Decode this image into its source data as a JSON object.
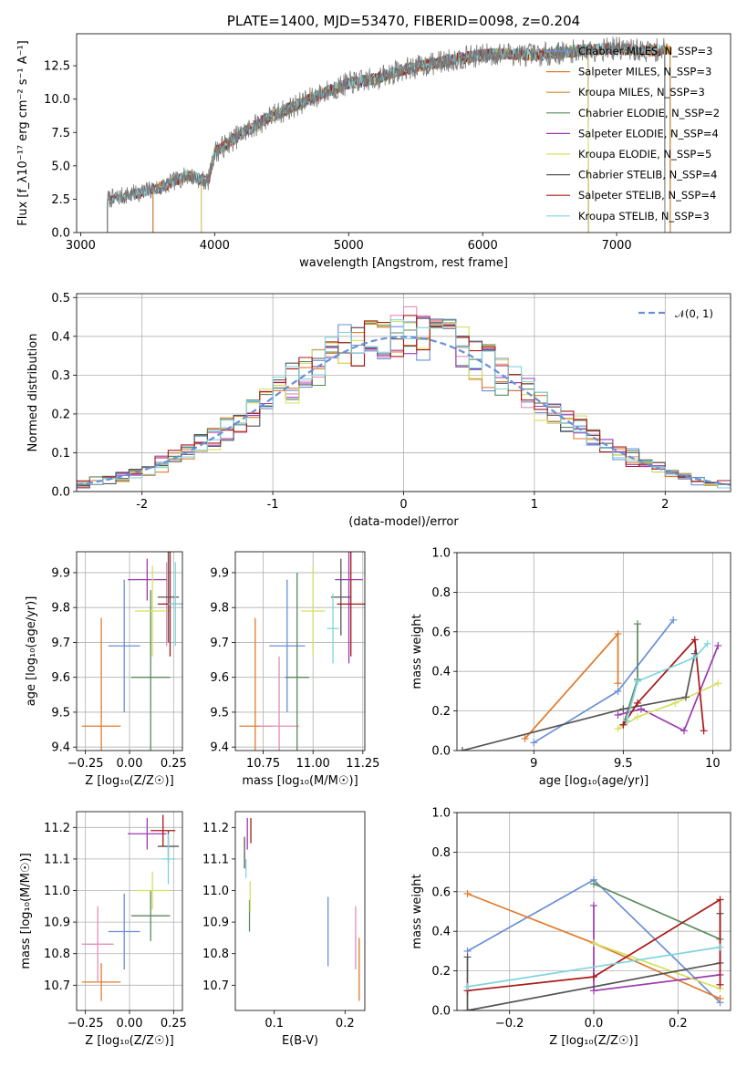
{
  "colors": [
    "#6a8fd8",
    "#e07b2c",
    "#e38fb7",
    "#c7913a",
    "#5b8a5e",
    "#9b3bb0",
    "#d6e060",
    "#555555",
    "#a81818",
    "#7fd4dd"
  ],
  "chart_data": [
    {
      "id": "spectrum",
      "type": "line",
      "title": "PLATE=1400, MJD=53470, FIBERID=0098, z=0.204",
      "xlabel": "wavelength [Angstrom, rest frame]",
      "ylabel": "Flux [f_λ10⁻¹⁷ erg cm⁻² s⁻¹ A⁻¹]",
      "xlim": [
        2970,
        7850
      ],
      "ylim": [
        0,
        14.9
      ],
      "xticks": [
        3000,
        4000,
        5000,
        6000,
        7000
      ],
      "yticks": [
        0.0,
        2.5,
        5.0,
        7.5,
        10.0,
        12.5
      ],
      "grid": false,
      "legend_position": "right",
      "series": [
        {
          "name": "Chabrier MILES, N_SSP=3",
          "color": "#6a8fd8",
          "xrange": [
            3540,
            7400
          ]
        },
        {
          "name": "Salpeter MILES, N_SSP=3",
          "color": "#e07b2c",
          "xrange": [
            3540,
            7400
          ]
        },
        {
          "name": "Kroupa MILES, N_SSP=3",
          "color": "#c7913a",
          "xrange": [
            3540,
            7400
          ]
        },
        {
          "name": "Chabrier ELODIE, N_SSP=2",
          "color": "#5b8a5e",
          "xrange": [
            3900,
            6790
          ]
        },
        {
          "name": "Salpeter ELODIE, N_SSP=4",
          "color": "#9b3bb0",
          "xrange": [
            3900,
            6790
          ]
        },
        {
          "name": "Kroupa ELODIE, N_SSP=5",
          "color": "#d6e060",
          "xrange": [
            3900,
            6790
          ]
        },
        {
          "name": "Chabrier STELIB, N_SSP=4",
          "color": "#555555",
          "xrange": [
            3200,
            7360
          ]
        },
        {
          "name": "Salpeter STELIB, N_SSP=4",
          "color": "#a81818",
          "xrange": [
            3200,
            7360
          ]
        },
        {
          "name": "Kroupa STELIB, N_SSP=3",
          "color": "#7fd4dd",
          "xrange": [
            3200,
            7360
          ]
        }
      ],
      "continuum": [
        [
          3200,
          2.5
        ],
        [
          3400,
          2.9
        ],
        [
          3600,
          3.4
        ],
        [
          3800,
          4.3
        ],
        [
          3950,
          3.8
        ],
        [
          4000,
          6.0
        ],
        [
          4200,
          7.4
        ],
        [
          4400,
          8.6
        ],
        [
          4600,
          9.5
        ],
        [
          4800,
          10.4
        ],
        [
          5000,
          11.2
        ],
        [
          5200,
          11.5
        ],
        [
          5400,
          12.2
        ],
        [
          5600,
          12.6
        ],
        [
          5800,
          13.0
        ],
        [
          6000,
          13.3
        ],
        [
          6200,
          13.4
        ],
        [
          6400,
          13.3
        ],
        [
          6600,
          13.5
        ],
        [
          6800,
          13.7
        ],
        [
          7000,
          13.8
        ],
        [
          7200,
          13.6
        ],
        [
          7360,
          13.7
        ],
        [
          7500,
          13.8
        ]
      ],
      "observed_noise": 0.9
    },
    {
      "id": "residuals",
      "type": "histogram",
      "xlabel": "(data-model)/error",
      "ylabel": "Normed distribution",
      "xlim": [
        -2.5,
        2.5
      ],
      "ylim": [
        0,
        0.51
      ],
      "xticks": [
        -2,
        -1,
        0,
        1,
        2
      ],
      "yticks": [
        0.0,
        0.1,
        0.2,
        0.3,
        0.4,
        0.5
      ],
      "grid": true,
      "legend_position": "top-right",
      "reference": {
        "name": "𝒩(0, 1)",
        "mean": 0,
        "std": 1,
        "color": "#6a8fd8"
      },
      "bins": {
        "start": -2.5,
        "width": 0.1,
        "count": 50
      }
    },
    {
      "id": "age-vs-Z",
      "type": "errorbar",
      "xlabel": "Z [log₁₀(Z/Z☉)]",
      "ylabel": "age [log₁₀(age/yr)]",
      "xlim": [
        -0.3,
        0.3
      ],
      "ylim": [
        9.39,
        9.96
      ],
      "xticks": [
        -0.25,
        0.0,
        0.25
      ],
      "xtick_labels": [
        "−0.25",
        "0.00",
        "0.25"
      ],
      "yticks": [
        9.4,
        9.5,
        9.6,
        9.7,
        9.8,
        9.9
      ],
      "grid": true,
      "points": [
        {
          "color": "#6a8fd8",
          "x": -0.03,
          "xerr": 0.09,
          "y": 9.69,
          "yerr": 0.19
        },
        {
          "color": "#e07b2c",
          "x": -0.16,
          "xerr": 0.11,
          "y": 9.46,
          "yerr": 0.31
        },
        {
          "color": "#e38fb7",
          "x": 0.21,
          "xerr": 0.03,
          "y": 9.81,
          "yerr": 0.12
        },
        {
          "color": "#5b8a5e",
          "x": 0.12,
          "xerr": 0.11,
          "y": 9.6,
          "yerr": 0.25
        },
        {
          "color": "#9b3bb0",
          "x": 0.1,
          "xerr": 0.11,
          "y": 9.88,
          "yerr": 0.06
        },
        {
          "color": "#d6e060",
          "x": 0.13,
          "xerr": 0.1,
          "y": 9.79,
          "yerr": 0.13
        },
        {
          "color": "#555555",
          "x": 0.22,
          "xerr": 0.06,
          "y": 9.83,
          "yerr": 0.13
        },
        {
          "color": "#a81818",
          "x": 0.23,
          "xerr": 0.07,
          "y": 9.81,
          "yerr": 0.15
        },
        {
          "color": "#7fd4dd",
          "x": 0.26,
          "xerr": 0.04,
          "y": 9.81,
          "yerr": 0.12
        }
      ]
    },
    {
      "id": "age-vs-mass",
      "type": "errorbar",
      "xlabel": "mass [log₁₀(M/M☉)]",
      "ylabel": "",
      "xlim": [
        10.61,
        11.26
      ],
      "ylim": [
        9.39,
        9.96
      ],
      "xticks": [
        10.75,
        11.0,
        11.25
      ],
      "xtick_labels": [
        "10.75",
        "11.00",
        "11.25"
      ],
      "yticks": [
        9.4,
        9.5,
        9.6,
        9.7,
        9.8,
        9.9
      ],
      "grid": true,
      "points": [
        {
          "color": "#6a8fd8",
          "x": 10.87,
          "xerr": 0.09,
          "y": 9.69,
          "yerr": 0.19
        },
        {
          "color": "#e07b2c",
          "x": 10.71,
          "xerr": 0.08,
          "y": 9.46,
          "yerr": 0.31
        },
        {
          "color": "#e38fb7",
          "x": 10.83,
          "xerr": 0.1,
          "y": 9.46,
          "yerr": 0.2
        },
        {
          "color": "#5b8a5e",
          "x": 10.92,
          "xerr": 0.06,
          "y": 9.6,
          "yerr": 0.3
        },
        {
          "color": "#9b3bb0",
          "x": 11.18,
          "xerr": 0.07,
          "y": 9.88,
          "yerr": 0.24
        },
        {
          "color": "#d6e060",
          "x": 11.0,
          "xerr": 0.06,
          "y": 9.79,
          "yerr": 0.13
        },
        {
          "color": "#555555",
          "x": 11.14,
          "xerr": 0.05,
          "y": 9.83,
          "yerr": 0.11
        },
        {
          "color": "#a81818",
          "x": 11.19,
          "xerr": 0.07,
          "y": 9.81,
          "yerr": 0.15
        },
        {
          "color": "#7fd4dd",
          "x": 11.1,
          "xerr": 0.03,
          "y": 9.74,
          "yerr": 0.1
        }
      ]
    },
    {
      "id": "mass-weight-vs-age",
      "type": "line",
      "xlabel": "age [log₁₀(age/yr)]",
      "ylabel": "mass weight",
      "xlim": [
        8.57,
        10.1
      ],
      "ylim": [
        0,
        1.0
      ],
      "xticks": [
        9.0,
        9.5,
        10.0
      ],
      "yticks": [
        0.0,
        0.2,
        0.4,
        0.6,
        0.8,
        1.0
      ],
      "grid": true,
      "series": [
        {
          "color": "#6a8fd8",
          "points": [
            [
              9.0,
              0.04
            ],
            [
              9.47,
              0.3
            ],
            [
              9.78,
              0.66
            ]
          ]
        },
        {
          "color": "#e07b2c",
          "points": [
            [
              8.95,
              0.06
            ],
            [
              9.47,
              0.59
            ],
            [
              9.47,
              0.34
            ]
          ]
        },
        {
          "color": "#5b8a5e",
          "points": [
            [
              9.5,
              0.13
            ],
            [
              9.58,
              0.36
            ],
            [
              9.58,
              0.64
            ]
          ]
        },
        {
          "color": "#9b3bb0",
          "points": [
            [
              9.47,
              0.18
            ],
            [
              9.6,
              0.21
            ],
            [
              9.84,
              0.1
            ],
            [
              10.03,
              0.53
            ]
          ]
        },
        {
          "color": "#d6e060",
          "points": [
            [
              9.47,
              0.11
            ],
            [
              9.58,
              0.17
            ],
            [
              9.79,
              0.24
            ],
            [
              10.03,
              0.34
            ]
          ]
        },
        {
          "color": "#555555",
          "points": [
            [
              8.6,
              0.0
            ],
            [
              9.5,
              0.21
            ],
            [
              9.85,
              0.27
            ],
            [
              9.9,
              0.49
            ]
          ]
        },
        {
          "color": "#a81818",
          "points": [
            [
              9.5,
              0.13
            ],
            [
              9.58,
              0.24
            ],
            [
              9.9,
              0.56
            ],
            [
              9.95,
              0.1
            ]
          ]
        },
        {
          "color": "#7fd4dd",
          "points": [
            [
              9.52,
              0.15
            ],
            [
              9.58,
              0.35
            ],
            [
              9.9,
              0.47
            ],
            [
              9.97,
              0.54
            ]
          ]
        }
      ]
    },
    {
      "id": "mass-vs-Z",
      "type": "errorbar",
      "xlabel": "Z [log₁₀(Z/Z☉)]",
      "ylabel": "mass [log₁₀(M/M☉)]",
      "xlim": [
        -0.3,
        0.3
      ],
      "ylim": [
        10.62,
        11.25
      ],
      "xticks": [
        -0.25,
        0.0,
        0.25
      ],
      "xtick_labels": [
        "−0.25",
        "0.00",
        "0.25"
      ],
      "yticks": [
        10.7,
        10.8,
        10.9,
        11.0,
        11.1,
        11.2
      ],
      "grid": true,
      "points": [
        {
          "color": "#6a8fd8",
          "x": -0.03,
          "xerr": 0.09,
          "y": 10.87,
          "yerr": 0.12
        },
        {
          "color": "#e07b2c",
          "x": -0.16,
          "xerr": 0.11,
          "y": 10.71,
          "yerr": 0.06
        },
        {
          "color": "#e38fb7",
          "x": -0.18,
          "xerr": 0.09,
          "y": 10.83,
          "yerr": 0.12
        },
        {
          "color": "#5b8a5e",
          "x": 0.12,
          "xerr": 0.11,
          "y": 10.92,
          "yerr": 0.08
        },
        {
          "color": "#9b3bb0",
          "x": 0.1,
          "xerr": 0.11,
          "y": 11.18,
          "yerr": 0.05
        },
        {
          "color": "#d6e060",
          "x": 0.13,
          "xerr": 0.1,
          "y": 11.0,
          "yerr": 0.06
        },
        {
          "color": "#555555",
          "x": 0.22,
          "xerr": 0.06,
          "y": 11.14,
          "yerr": 0.05
        },
        {
          "color": "#a81818",
          "x": 0.19,
          "xerr": 0.07,
          "y": 11.19,
          "yerr": 0.05
        },
        {
          "color": "#7fd4dd",
          "x": 0.22,
          "xerr": 0.04,
          "y": 11.1,
          "yerr": 0.08
        }
      ]
    },
    {
      "id": "mass-vs-EBV",
      "type": "errorbar",
      "xlabel": "E(B-V)",
      "ylabel": "",
      "xlim": [
        0.045,
        0.228
      ],
      "ylim": [
        10.62,
        11.25
      ],
      "xticks": [
        0.1,
        0.2
      ],
      "xtick_labels": [
        "0.1",
        "0.2"
      ],
      "yticks": [
        10.7,
        10.8,
        10.9,
        11.0,
        11.1,
        11.2
      ],
      "grid": false,
      "points": [
        {
          "color": "#6a8fd8",
          "x": 0.176,
          "xerr": 0,
          "y": 10.87,
          "yerr": 0.11
        },
        {
          "color": "#e07b2c",
          "x": 0.22,
          "xerr": 0,
          "y": 10.75,
          "yerr": 0.1
        },
        {
          "color": "#e38fb7",
          "x": 0.215,
          "xerr": 0,
          "y": 10.85,
          "yerr": 0.1
        },
        {
          "color": "#5b8a5e",
          "x": 0.065,
          "xerr": 0,
          "y": 10.92,
          "yerr": 0.05
        },
        {
          "color": "#9b3bb0",
          "x": 0.062,
          "xerr": 0,
          "y": 11.18,
          "yerr": 0.05
        },
        {
          "color": "#d6e060",
          "x": 0.066,
          "xerr": 0,
          "y": 10.98,
          "yerr": 0.05
        },
        {
          "color": "#555555",
          "x": 0.058,
          "xerr": 0,
          "y": 11.12,
          "yerr": 0.05
        },
        {
          "color": "#a81818",
          "x": 0.067,
          "xerr": 0,
          "y": 11.19,
          "yerr": 0.04
        },
        {
          "color": "#7fd4dd",
          "x": 0.06,
          "xerr": 0,
          "y": 11.07,
          "yerr": 0.03
        }
      ]
    },
    {
      "id": "mass-weight-vs-Z",
      "type": "line",
      "xlabel": "Z [log₁₀(Z/Z☉)]",
      "ylabel": "mass weight",
      "xlim": [
        -0.325,
        0.325
      ],
      "ylim": [
        0,
        1.0
      ],
      "xticks": [
        -0.2,
        0.0,
        0.2
      ],
      "xtick_labels": [
        "−0.2",
        "0.0",
        "0.2"
      ],
      "yticks": [
        0.0,
        0.2,
        0.4,
        0.6,
        0.8,
        1.0
      ],
      "grid": true,
      "series": [
        {
          "color": "#6a8fd8",
          "points": [
            [
              -0.3,
              0.3
            ],
            [
              0.0,
              0.66
            ],
            [
              0.3,
              0.04
            ]
          ]
        },
        {
          "color": "#e07b2c",
          "points": [
            [
              -0.3,
              0.59
            ],
            [
              0.0,
              0.34
            ],
            [
              0.3,
              0.06
            ]
          ]
        },
        {
          "color": "#5b8a5e",
          "points": [
            [
              0.0,
              0.64
            ],
            [
              0.3,
              0.36
            ]
          ]
        },
        {
          "color": "#9b3bb0",
          "points": [
            [
              0.0,
              0.53
            ],
            [
              0.0,
              0.1
            ],
            [
              0.3,
              0.18
            ]
          ]
        },
        {
          "color": "#d6e060",
          "points": [
            [
              0.0,
              0.34
            ],
            [
              0.3,
              0.11
            ]
          ]
        },
        {
          "color": "#555555",
          "points": [
            [
              -0.3,
              0.27
            ],
            [
              -0.3,
              0.0
            ],
            [
              0.3,
              0.24
            ],
            [
              0.3,
              0.49
            ]
          ]
        },
        {
          "color": "#a81818",
          "points": [
            [
              -0.3,
              0.1
            ],
            [
              0.0,
              0.17
            ],
            [
              0.3,
              0.56
            ],
            [
              0.3,
              0.13
            ]
          ]
        },
        {
          "color": "#7fd4dd",
          "points": [
            [
              -0.3,
              0.12
            ],
            [
              0.3,
              0.32
            ]
          ]
        }
      ]
    }
  ]
}
